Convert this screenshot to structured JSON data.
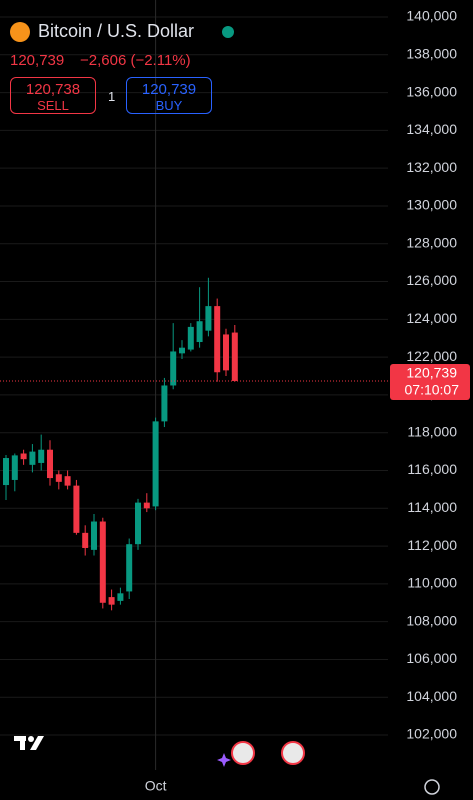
{
  "header": {
    "title": "Bitcoin / U.S. Dollar",
    "price": "120,739",
    "change": "−2,606 (−2.11%)",
    "sell_price": "120,738",
    "sell_label": "SELL",
    "quantity": "1",
    "buy_price": "120,739",
    "buy_label": "BUY"
  },
  "chart_data": {
    "type": "candlestick",
    "categories": [
      null,
      null,
      null,
      null,
      null,
      null,
      null,
      null,
      null,
      null,
      null,
      null,
      null,
      null,
      null,
      null,
      null,
      "Oct",
      null,
      null,
      null,
      null,
      null,
      null,
      null,
      null,
      null
    ],
    "open": [
      115230,
      115500,
      116900,
      116300,
      116400,
      117100,
      115800,
      115700,
      115200,
      112700,
      111800,
      113300,
      109300,
      109100,
      109600,
      112100,
      114300,
      114100,
      118600,
      120500,
      122200,
      122400,
      122800,
      123400,
      124700,
      123200,
      123300
    ],
    "high": [
      116820,
      116900,
      117100,
      117400,
      117900,
      117600,
      116000,
      116000,
      115500,
      113100,
      113700,
      113500,
      109700,
      109800,
      112400,
      114500,
      114800,
      118800,
      120900,
      123800,
      122900,
      123800,
      125700,
      126200,
      125100,
      123500,
      123700
    ],
    "low": [
      114440,
      114900,
      116300,
      115900,
      116000,
      115200,
      115000,
      115000,
      112600,
      111500,
      111500,
      108700,
      108600,
      108900,
      109200,
      111800,
      113800,
      113900,
      118300,
      120300,
      121900,
      122300,
      122500,
      123100,
      120700,
      121000,
      120700
    ],
    "close": [
      116660,
      116800,
      116600,
      117000,
      117100,
      115600,
      115400,
      115200,
      112700,
      111900,
      113300,
      109000,
      108900,
      109500,
      112100,
      114300,
      114000,
      118600,
      120500,
      122300,
      122500,
      123600,
      123900,
      124700,
      121200,
      121300,
      120739
    ],
    "up_color": "#089981",
    "down_color": "#f23645",
    "ylim": [
      100150,
      140900
    ],
    "yticks": [
      {
        "value": 102000,
        "label": "102,000"
      },
      {
        "value": 104000,
        "label": "104,000"
      },
      {
        "value": 106000,
        "label": "106,000"
      },
      {
        "value": 108000,
        "label": "108,000"
      },
      {
        "value": 110000,
        "label": "110,000"
      },
      {
        "value": 112000,
        "label": "112,000"
      },
      {
        "value": 114000,
        "label": "114,000"
      },
      {
        "value": 116000,
        "label": "116,000"
      },
      {
        "value": 118000,
        "label": "118,000"
      },
      {
        "value": 120000,
        "label": "120,000"
      },
      {
        "value": 122000,
        "label": "122,000"
      },
      {
        "value": 124000,
        "label": "124,000"
      },
      {
        "value": 126000,
        "label": "126,000"
      },
      {
        "value": 128000,
        "label": "128,000"
      },
      {
        "value": 130000,
        "label": "130,000"
      },
      {
        "value": 132000,
        "label": "132,000"
      },
      {
        "value": 134000,
        "label": "134,000"
      },
      {
        "value": 136000,
        "label": "136,000"
      },
      {
        "value": 138000,
        "label": "138,000"
      },
      {
        "value": 140000,
        "label": "140,000"
      }
    ],
    "grid": true,
    "last_price": {
      "value": 120739,
      "label": "120,739"
    },
    "countdown": "07:10:07"
  }
}
